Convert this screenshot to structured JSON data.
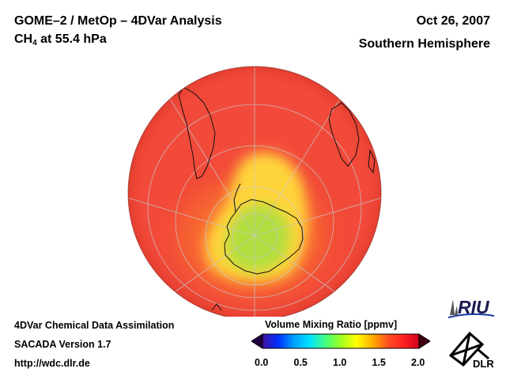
{
  "header": {
    "title_line1": "GOME–2 / MetOp – 4DVar Analysis",
    "species_main": "CH",
    "species_sub": "4",
    "species_rest": " at 55.4 hPa",
    "date": "Oct 26, 2007",
    "hemisphere": "Southern Hemisphere"
  },
  "footer": {
    "line1": "4DVar Chemical Data Assimilation",
    "line2": "SACADA Version 1.7",
    "line3": "http://wdc.dlr.de"
  },
  "colorbar": {
    "title": "Volume Mixing Ratio [ppmv]",
    "range": [
      0.0,
      2.0
    ],
    "ticks": [
      "0.0",
      "0.5",
      "1.0",
      "1.5",
      "2.0"
    ],
    "tick_values": [
      0.0,
      0.5,
      1.0,
      1.5,
      2.0
    ],
    "colors": [
      "#200040",
      "#4010a0",
      "#0030ff",
      "#00a0ff",
      "#00e0ff",
      "#40ff80",
      "#a0ff20",
      "#ffff00",
      "#ffb000",
      "#ff5020",
      "#ff2020",
      "#d00020",
      "#400010"
    ]
  },
  "logos": {
    "riu": "RIU",
    "dlr": "DLR"
  },
  "map_colors": {
    "background": "#f24a3a",
    "rim": "#e83a2e",
    "ring": "#f86a2e",
    "plume": "#ffd43a",
    "core": "#a8e040",
    "center": "#98dc50",
    "coast": "#101010"
  }
}
